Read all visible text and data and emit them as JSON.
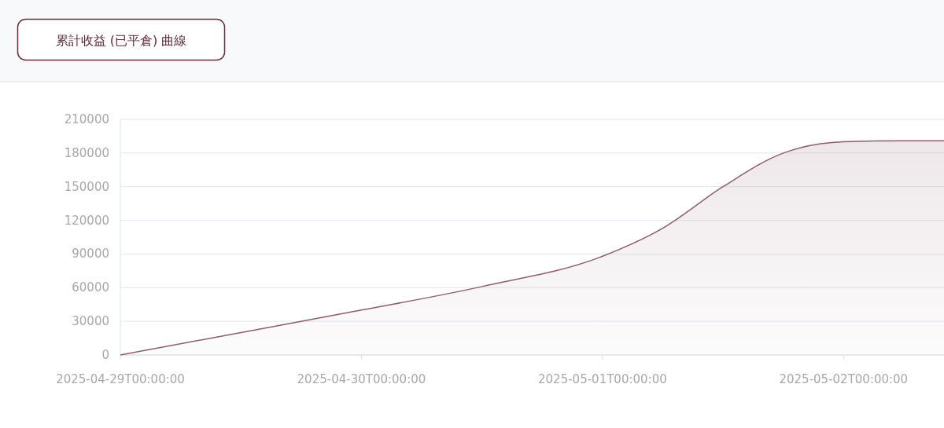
{
  "chart_data": {
    "type": "area",
    "title": "累計收益 (已平倉) 曲線",
    "x": [
      "2025-04-29T00:00",
      "2025-04-29T12:00",
      "2025-04-30T00:00",
      "2025-04-30T12:00",
      "2025-05-01T00:00",
      "2025-05-01T06:00",
      "2025-05-01T12:00",
      "2025-05-01T18:00",
      "2025-05-02T00:00",
      "2025-05-02T06:00",
      "2025-05-02T10:00"
    ],
    "series": [
      {
        "color": "#8c5f6a",
        "values": [
          0,
          20000,
          40000,
          61000,
          88000,
          113000,
          150000,
          180000,
          190000,
          191000,
          191000
        ]
      }
    ],
    "xlim": [
      "2025-04-29T00:00",
      "2025-05-02T10:00"
    ],
    "xticks": [
      {
        "value": "2025-04-29",
        "label": "2025-04-29T00:00:00"
      },
      {
        "value": "2025-04-30",
        "label": "2025-04-30T00:00:00"
      },
      {
        "value": "2025-05-01",
        "label": "2025-05-01T00:00:00"
      },
      {
        "value": "2025-05-02",
        "label": "2025-05-02T00:00:00"
      }
    ],
    "ylim": [
      0,
      210000
    ],
    "yticks": [
      0,
      30000,
      60000,
      90000,
      120000,
      150000,
      180000,
      210000
    ],
    "grid": "y",
    "marker": "none",
    "line_style": "solid"
  }
}
